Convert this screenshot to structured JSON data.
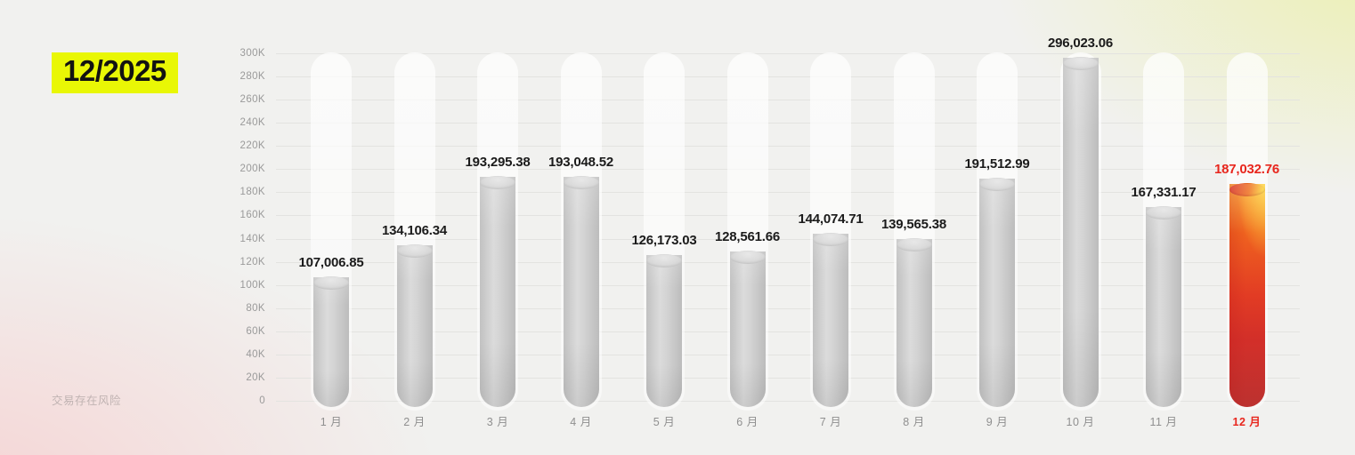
{
  "page": {
    "title": "12/2025",
    "disclaimer": "交易存在风险"
  },
  "colors": {
    "title_highlight": "#e9f705",
    "accent_red": "#e8261d",
    "value_text": "#1b1b1b",
    "axis_text": "#9a9a9a",
    "gridline": "#e3e3e0",
    "bar_gray": "#cdcdcd",
    "bar_red_top": "#f8991e",
    "bar_red_bottom": "#ca3533"
  },
  "chart_data": {
    "type": "bar",
    "title": "12/2025",
    "categories": [
      "1 月",
      "2 月",
      "3 月",
      "4 月",
      "5 月",
      "6 月",
      "7 月",
      "8 月",
      "9 月",
      "10 月",
      "11 月",
      "12 月"
    ],
    "values": [
      107006.85,
      134106.34,
      193295.38,
      193048.52,
      126173.03,
      128561.66,
      144074.71,
      139565.38,
      191512.99,
      296023.06,
      167331.17,
      187032.76
    ],
    "value_labels": [
      "107,006.85",
      "134,106.34",
      "193,295.38",
      "193,048.52",
      "126,173.03",
      "128,561.66",
      "144,074.71",
      "139,565.38",
      "191,512.99",
      "296,023.06",
      "167,331.17",
      "187,032.76"
    ],
    "highlight_index": 11,
    "xlabel": "",
    "ylabel": "",
    "ylim": [
      0,
      300000
    ],
    "y_tick_step": 20000,
    "y_tick_labels": [
      "0",
      "20K",
      "40K",
      "60K",
      "80K",
      "100K",
      "120K",
      "140K",
      "160K",
      "180K",
      "200K",
      "220K",
      "240K",
      "260K",
      "280K",
      "300K"
    ],
    "grid": true,
    "legend_position": "none"
  }
}
